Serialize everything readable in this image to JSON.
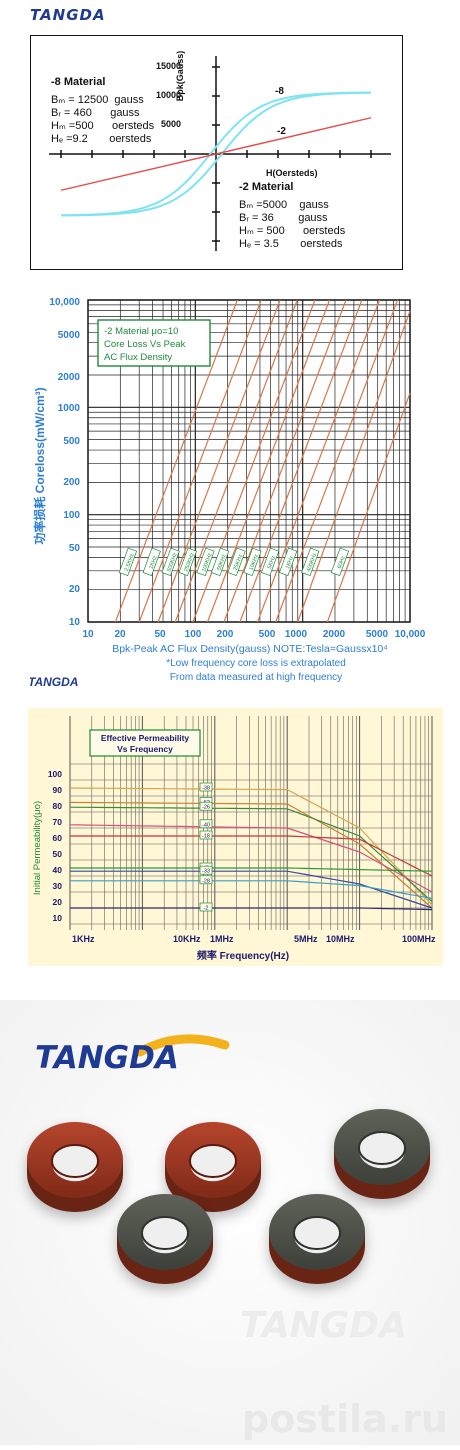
{
  "brand": {
    "logo_text": "TANGDA"
  },
  "panel1": {
    "y_axis_label": "Bpk(Gauss)",
    "x_axis_label": "H(Oersteds)",
    "y_ticks": [
      "15000",
      "10000",
      "5000"
    ],
    "curve_labels": [
      "-8",
      "-2"
    ],
    "material8": {
      "title": "-8 Material",
      "lines": [
        "Bₘ = 12500  gauss",
        "Bᵣ = 460      gauss",
        "Hₘ =500      oersteds",
        "Hₑ =9.2       oersteds"
      ]
    },
    "material2": {
      "title": "-2 Material",
      "lines": [
        "Bₘ =5000    gauss",
        "Bᵣ = 36        gauss",
        "Hₘ = 500      oersteds",
        "Hₑ = 3.5       oersteds"
      ]
    },
    "colors": {
      "material8": "#7fe3f0",
      "material2": "#e84848"
    }
  },
  "panel2": {
    "box_lines": [
      "-2 Material  μo=10",
      "Core Loss Vs Peak",
      "AC Flux Density"
    ],
    "y_ticks": [
      "10,000",
      "5000",
      "2000",
      "1000",
      "500",
      "200",
      "100",
      "50",
      "20",
      "10"
    ],
    "x_ticks": [
      "10",
      "20",
      "50",
      "100",
      "200",
      "500",
      "1000",
      "2000",
      "5000",
      "10,000"
    ],
    "y_label": "功率损耗  Coreloss(mW/cm³)",
    "x_label": "Bpk-Peak AC Flux Density(gauss) NOTE:Tesla=Gaussx10⁴",
    "note_lines": [
      "*Low frequency core loss is extrapolated",
      "From data measured at high frequency"
    ],
    "freq_labels": [
      "2.5KHz",
      "1KHz",
      "500KHz",
      "250KHz",
      "100KHz",
      "50KHz",
      "25KHz",
      "10KHz",
      "5KHz",
      "1KHz",
      "400KHz",
      "60Hz"
    ],
    "colors": {
      "line": "#d9774a",
      "grid": "#222222",
      "text": "#2e7fd3",
      "box": "#1f8a3a"
    }
  },
  "panel3": {
    "box_lines": [
      "Effective Permeability",
      "Vs Frequency"
    ],
    "y_label": "Initial Permeability(μo)",
    "y_ticks": [
      "100",
      "90",
      "80",
      "70",
      "60",
      "50",
      "40",
      "30",
      "20",
      "10"
    ],
    "x_ticks": [
      "1KHz",
      "10KHz",
      "1MHz",
      "5MHz",
      "10MHz",
      "100MHz"
    ],
    "x_label": "频率 Frequency(Hz)",
    "series_labels": [
      "-38",
      "-52",
      "-26",
      "-40",
      "-18",
      "-8",
      "-33",
      "-28",
      "-2"
    ],
    "colors": {
      "label_border": "#1f8a3a",
      "text": "#1a1a6b"
    }
  },
  "chart_data": [
    {
      "type": "line",
      "y_label": "Bpk(Gauss)",
      "x_label": "H(Oersteds)",
      "series": [
        {
          "name": "-8",
          "x": [
            -500,
            -250,
            -100,
            0,
            100,
            250,
            500
          ],
          "y": [
            -12500,
            -10500,
            -6500,
            0,
            6500,
            10500,
            12500
          ]
        },
        {
          "name": "-2",
          "x": [
            -500,
            0,
            500
          ],
          "y": [
            -5000,
            0,
            5000
          ]
        }
      ]
    },
    {
      "type": "line",
      "title": "-2 Material μo=10 Core Loss Vs Peak AC Flux Density",
      "x_label": "Bpk-Peak AC Flux Density(gauss) NOTE:Tesla=Gaussx10⁴",
      "y_label": "Coreloss(mW/cm³)",
      "xscale": "log",
      "yscale": "log",
      "xlim": [
        10,
        10000
      ],
      "ylim": [
        10,
        10000
      ],
      "grid": true
    },
    {
      "type": "line",
      "title": "Effective Permeability Vs Frequency",
      "x_label": "Frequency(Hz)",
      "y_label": "Initial Permeability(μo)",
      "xscale": "log",
      "ylim": [
        0,
        100
      ],
      "series": [
        {
          "name": "-38",
          "values_x_hz": [
            1000,
            1000000,
            10000000,
            100000000
          ],
          "values_y": [
            85,
            84,
            60,
            12
          ]
        },
        {
          "name": "-52",
          "values_x_hz": [
            1000,
            1000000,
            10000000,
            100000000
          ],
          "values_y": [
            76,
            75,
            50,
            10
          ]
        },
        {
          "name": "-26",
          "values_x_hz": [
            1000,
            1000000,
            10000000,
            100000000
          ],
          "values_y": [
            73,
            72,
            55,
            14
          ]
        },
        {
          "name": "-40",
          "values_x_hz": [
            1000,
            1000000,
            10000000,
            100000000
          ],
          "values_y": [
            62,
            60,
            45,
            20
          ]
        },
        {
          "name": "-18",
          "values_x_hz": [
            1000,
            1000000,
            10000000,
            100000000
          ],
          "values_y": [
            55,
            55,
            53,
            30
          ]
        },
        {
          "name": "-8",
          "values_x_hz": [
            1000,
            1000000,
            10000000,
            100000000
          ],
          "values_y": [
            35,
            35,
            34,
            33
          ]
        },
        {
          "name": "-33",
          "values_x_hz": [
            1000,
            1000000,
            10000000,
            100000000
          ],
          "values_y": [
            33,
            33,
            25,
            10
          ]
        },
        {
          "name": "-28",
          "values_x_hz": [
            1000,
            1000000,
            10000000,
            100000000
          ],
          "values_y": [
            27,
            27,
            24,
            16
          ]
        },
        {
          "name": "-2",
          "values_x_hz": [
            1000,
            1000000,
            10000000,
            100000000
          ],
          "values_y": [
            10,
            10,
            10,
            9
          ]
        }
      ]
    }
  ],
  "photo": {
    "watermarks": [
      "TANGDA",
      "postila.ru"
    ]
  }
}
